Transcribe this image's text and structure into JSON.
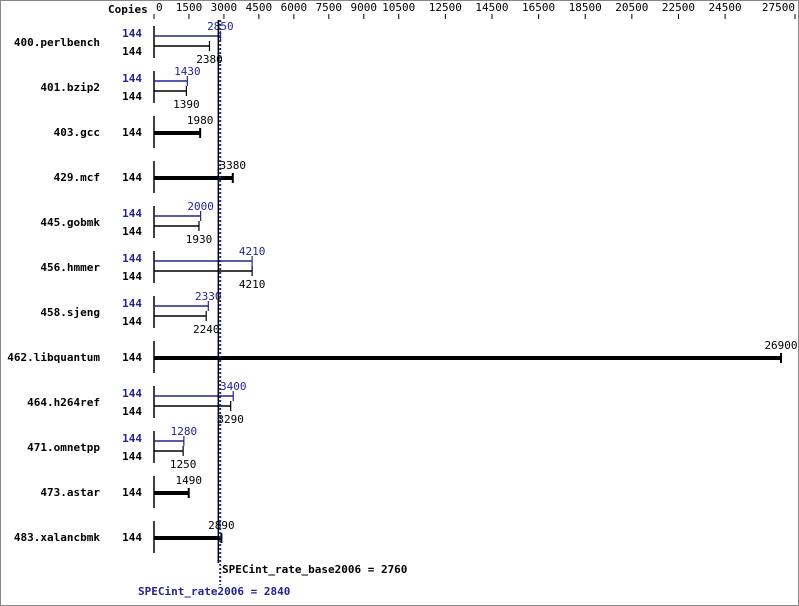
{
  "chart_data": {
    "type": "bar",
    "axis_label": "Copies",
    "categories": [
      "400.perlbench",
      "401.bzip2",
      "403.gcc",
      "429.mcf",
      "445.gobmk",
      "456.hmmer",
      "458.sjeng",
      "462.libquantum",
      "464.h264ref",
      "471.omnetpp",
      "473.astar",
      "483.xalancbmk"
    ],
    "xlim": [
      0,
      27500
    ],
    "xticks": [
      0,
      1500,
      3000,
      4500,
      6000,
      7500,
      9000,
      10500,
      12500,
      14500,
      16500,
      18500,
      20500,
      22500,
      24500,
      27500
    ],
    "series": [
      {
        "name": "SPECint_rate_base2006",
        "color": "#000000",
        "values": [
          2380,
          1390,
          1980,
          3380,
          1930,
          4210,
          2240,
          26900,
          3290,
          1250,
          1490,
          2890
        ],
        "copies": [
          144,
          144,
          144,
          144,
          144,
          144,
          144,
          144,
          144,
          144,
          144,
          144
        ],
        "mean": 2760,
        "mean_label": "SPECint_rate_base2006 = 2760"
      },
      {
        "name": "SPECint_rate2006",
        "color": "#24248f",
        "values": [
          2850,
          1430,
          null,
          null,
          2000,
          4210,
          2330,
          null,
          3400,
          1280,
          null,
          null
        ],
        "copies": [
          144,
          144,
          null,
          null,
          144,
          144,
          144,
          null,
          144,
          144,
          null,
          null
        ],
        "mean": 2840,
        "mean_label": "SPECint_rate2006 = 2840"
      }
    ]
  }
}
